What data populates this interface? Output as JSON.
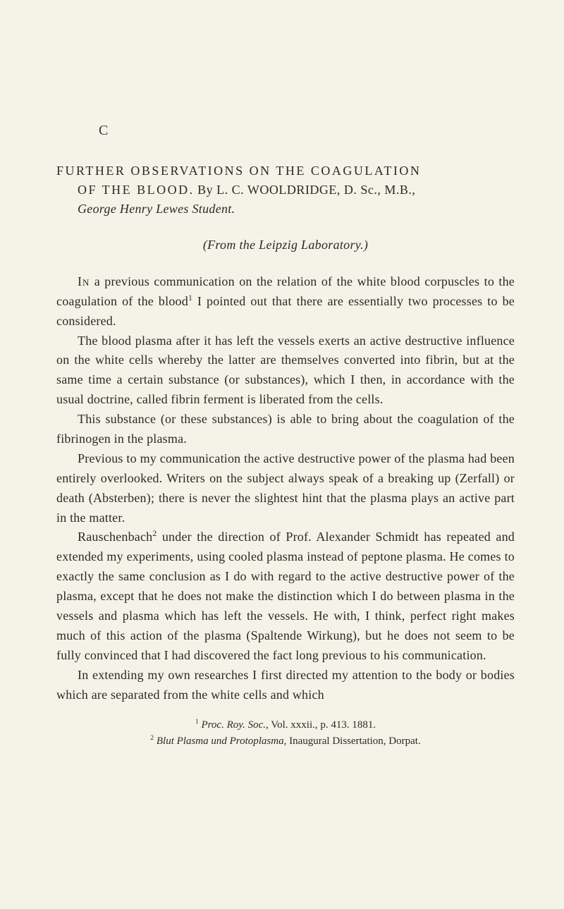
{
  "annotation": "C",
  "title": {
    "line1": "FURTHER OBSERVATIONS ON THE COAGULATION",
    "line2_caps": "OF THE BLOOD.",
    "byline": "By L. C. WOOLDRIDGE, D. Sc., M.B.,",
    "student_line": "George Henry Lewes Student."
  },
  "from_line": "(From the Leipzig Laboratory.)",
  "paragraphs": {
    "p1_lead": "In",
    "p1_rest": " a previous communication on the relation of the white blood corpuscles to the coagulation of the blood",
    "p1_sup": "1",
    "p1_tail": " I pointed out that there are essentially two processes to be considered.",
    "p2": "The blood plasma after it has left the vessels exerts an active destructive influence on the white cells whereby the latter are themselves converted into fibrin, but at the same time a certain substance (or substances), which I then, in accordance with the usual doctrine, called fibrin ferment is liberated from the cells.",
    "p3": "This substance (or these substances) is able to bring about the coagulation of the fibrinogen in the plasma.",
    "p4": "Previous to my communication the active destructive power of the plasma had been entirely overlooked. Writers on the subject always speak of a breaking up (Zerfall) or death (Absterben); there is never the slightest hint that the plasma plays an active part in the matter.",
    "p5a": "Rauschenbach",
    "p5_sup": "2",
    "p5b": " under the direction of Prof. Alexander Schmidt has repeated and extended my experiments, using cooled plasma instead of peptone plasma. He comes to exactly the same conclusion as I do with regard to the active destructive power of the plasma, except that he does not make the distinction which I do between plasma in the vessels and plasma which has left the vessels. He with, I think, perfect right makes much of this action of the plasma (Spaltende Wirkung), but he does not seem to be fully convinced that I had discovered the fact long previous to his communication.",
    "p6": "In extending my own researches I first directed my attention to the body or bodies which are separated from the white cells and which"
  },
  "footnotes": {
    "f1_sup": "1",
    "f1_text_i": " Proc. Roy. Soc.",
    "f1_text_r": ", Vol. xxxii., p. 413. 1881.",
    "f2_sup": "2",
    "f2_text_i": " Blut Plasma und Protoplasma",
    "f2_text_r": ", Inaugural Dissertation, Dorpat."
  }
}
